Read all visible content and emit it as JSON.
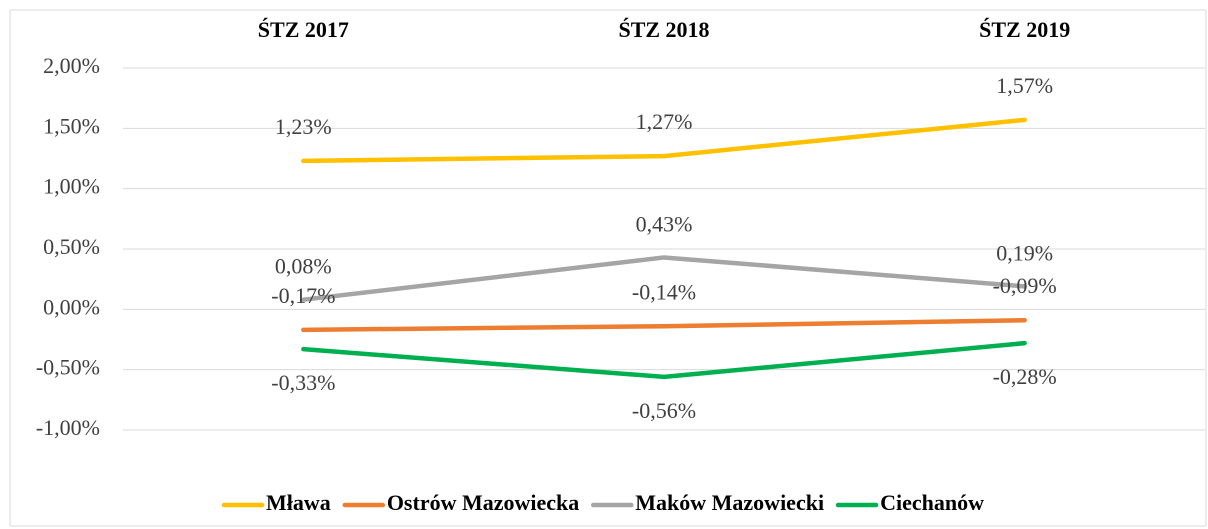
{
  "chart_data": {
    "type": "line",
    "categories": [
      "ŚTZ 2017",
      "ŚTZ 2018",
      "ŚTZ 2019"
    ],
    "series": [
      {
        "name": "Mława",
        "color": "#ffc000",
        "values": [
          1.23,
          1.27,
          1.57
        ],
        "value_labels": [
          "1,23%",
          "1,27%",
          "1,57%"
        ]
      },
      {
        "name": "Ostrów Mazowiecka",
        "color": "#ed7d31",
        "values": [
          -0.17,
          -0.14,
          -0.09
        ],
        "value_labels": [
          "-0,17%",
          "-0,14%",
          "-0,09%"
        ]
      },
      {
        "name": "Maków Mazowiecki",
        "color": "#a5a5a5",
        "values": [
          0.08,
          0.43,
          0.19
        ],
        "value_labels": [
          "0,08%",
          "0,43%",
          "0,19%"
        ]
      },
      {
        "name": "Ciechanów",
        "color": "#00b050",
        "values": [
          -0.33,
          -0.56,
          -0.28
        ],
        "value_labels": [
          "-0,33%",
          "-0,56%",
          "-0,28%"
        ]
      }
    ],
    "ylim": [
      -1,
      2
    ],
    "yticks": [
      {
        "value": -1,
        "label": "-1,00%"
      },
      {
        "value": -0.5,
        "label": "-0,50%"
      },
      {
        "value": 0,
        "label": "0,00%"
      },
      {
        "value": 0.5,
        "label": "0,50%"
      },
      {
        "value": 1,
        "label": "1,00%"
      },
      {
        "value": 1.5,
        "label": "1,50%"
      },
      {
        "value": 2,
        "label": "2,00%"
      }
    ],
    "grid": true,
    "legend": "bottom"
  }
}
